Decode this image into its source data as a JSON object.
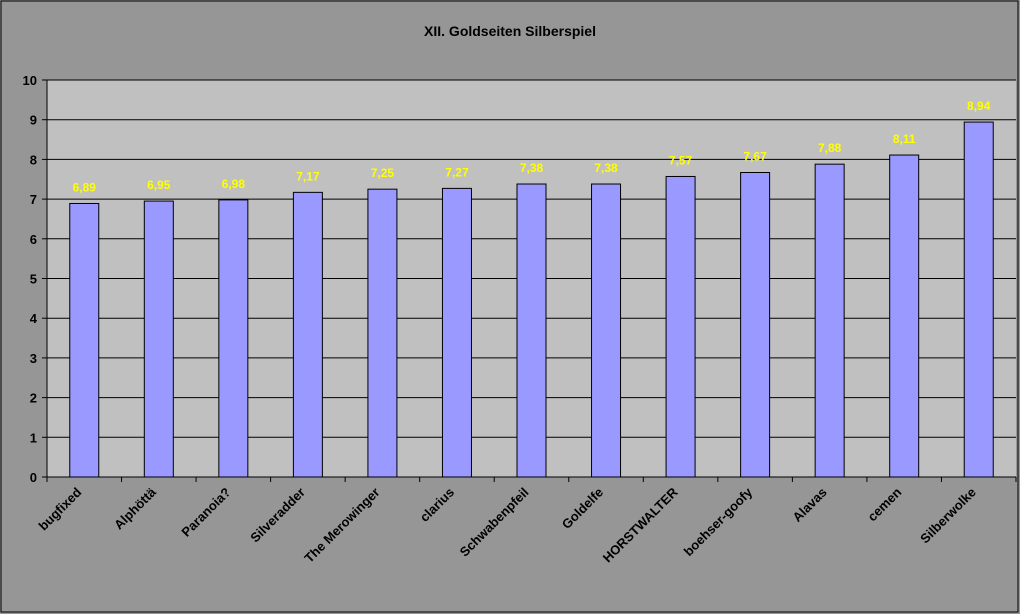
{
  "chart_data": {
    "type": "bar",
    "title": "XII. Goldseiten Silberspiel",
    "categories": [
      "bugfixed",
      "Alphöttä",
      "Paranoia?",
      "Silveradder",
      "The Merowinger",
      "clarius",
      "Schwabenpfeil",
      "Goldelfe",
      "HORSTWALTER",
      "boehser-goofy",
      "Alavas",
      "cemen",
      "Silberwolke"
    ],
    "values": [
      6.89,
      6.95,
      6.98,
      7.17,
      7.25,
      7.27,
      7.38,
      7.38,
      7.57,
      7.67,
      7.88,
      8.11,
      8.94
    ],
    "data_labels": [
      "6,89",
      "6,95",
      "6,98",
      "7,17",
      "7,25",
      "7,27",
      "7,38",
      "7,38",
      "7,57",
      "7,67",
      "7,88",
      "8,11",
      "8,94"
    ],
    "xlabel": "",
    "ylabel": "",
    "ylim": [
      0,
      10
    ],
    "yticks": [
      "0",
      "1",
      "2",
      "3",
      "4",
      "5",
      "6",
      "7",
      "8",
      "9",
      "10"
    ],
    "grid": true,
    "legend": "none",
    "colors": {
      "bar": "#9999ff",
      "plot_bg": "#c0c0c0",
      "chart_bg": "#969696",
      "data_label": "#ffff00"
    }
  }
}
